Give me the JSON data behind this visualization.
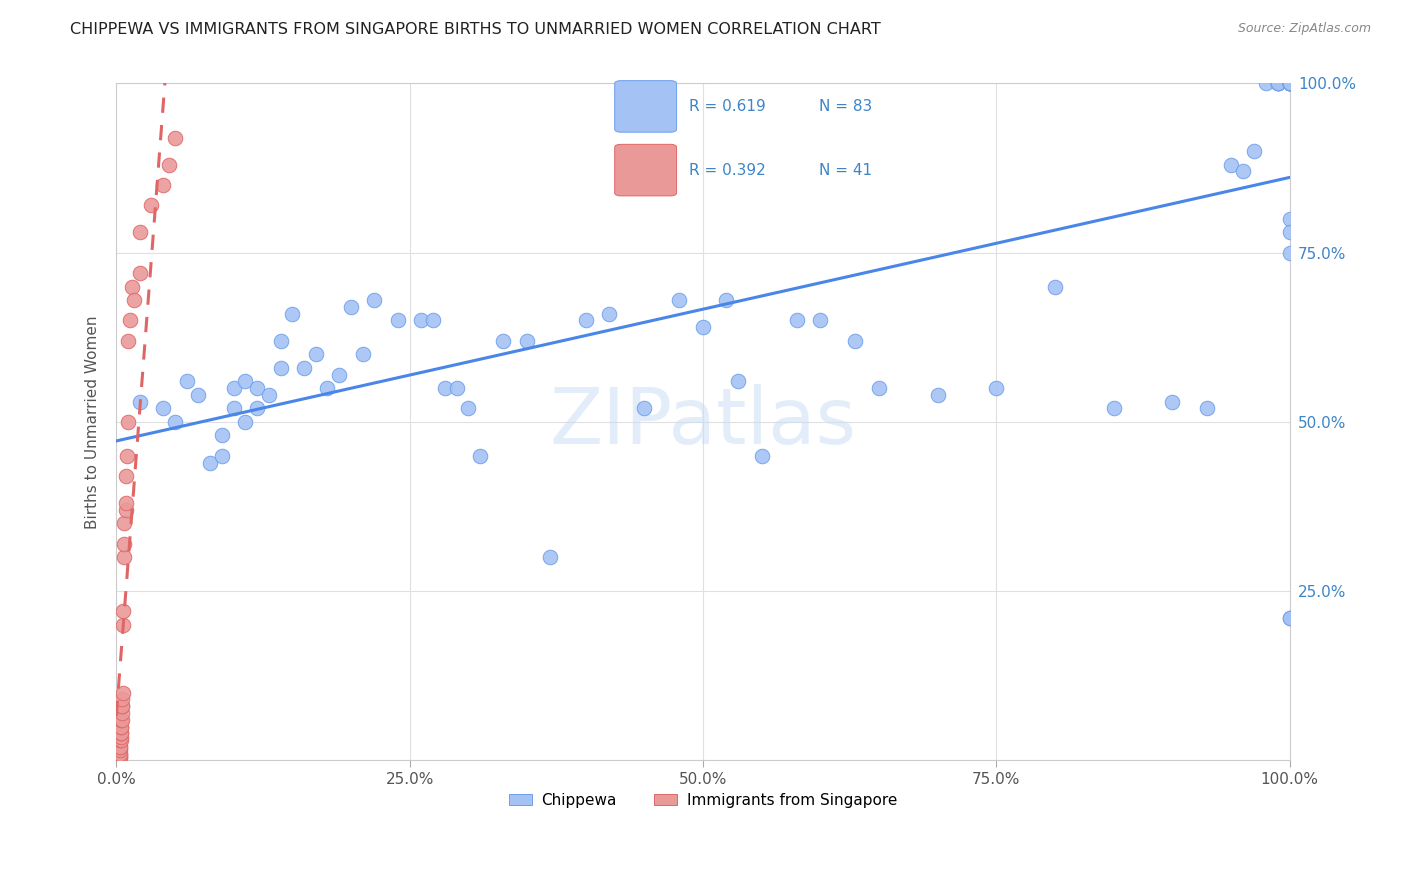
{
  "title": "CHIPPEWA VS IMMIGRANTS FROM SINGAPORE BIRTHS TO UNMARRIED WOMEN CORRELATION CHART",
  "source": "Source: ZipAtlas.com",
  "ylabel": "Births to Unmarried Women",
  "xlim": [
    0.0,
    1.0
  ],
  "ylim": [
    0.0,
    1.0
  ],
  "xtick_vals": [
    0.0,
    0.25,
    0.5,
    0.75,
    1.0
  ],
  "xtick_labels": [
    "0.0%",
    "25.0%",
    "50.0%",
    "75.0%",
    "100.0%"
  ],
  "right_ytick_vals": [
    0.25,
    0.5,
    0.75,
    1.0
  ],
  "right_ytick_labels": [
    "25.0%",
    "50.0%",
    "75.0%",
    "100.0%"
  ],
  "legend_r1": "0.619",
  "legend_n1": "83",
  "legend_r2": "0.392",
  "legend_n2": "41",
  "color_blue": "#a4c2f4",
  "color_blue_edge": "#6d9eeb",
  "color_pink": "#ea9999",
  "color_pink_edge": "#e06666",
  "color_blue_text": "#3d85c8",
  "line_blue_color": "#4a86e8",
  "line_pink_color": "#e06666",
  "background_color": "#ffffff",
  "watermark": "ZIPatlas",
  "chippewa_x": [
    0.02,
    0.04,
    0.05,
    0.06,
    0.07,
    0.08,
    0.09,
    0.09,
    0.1,
    0.1,
    0.11,
    0.11,
    0.12,
    0.12,
    0.13,
    0.14,
    0.14,
    0.15,
    0.16,
    0.17,
    0.18,
    0.19,
    0.2,
    0.21,
    0.22,
    0.24,
    0.26,
    0.27,
    0.28,
    0.29,
    0.3,
    0.31,
    0.33,
    0.35,
    0.37,
    0.4,
    0.42,
    0.45,
    0.48,
    0.5,
    0.52,
    0.53,
    0.55,
    0.58,
    0.6,
    0.63,
    0.65,
    0.7,
    0.75,
    0.8,
    0.85,
    0.9,
    0.93,
    0.95,
    0.96,
    0.97,
    0.98,
    0.99,
    0.99,
    0.99,
    0.99,
    0.99,
    1.0,
    1.0,
    1.0,
    1.0,
    1.0,
    1.0,
    1.0,
    1.0,
    1.0,
    1.0,
    1.0,
    1.0,
    1.0,
    1.0,
    1.0,
    1.0,
    1.0,
    1.0,
    1.0,
    1.0,
    1.0
  ],
  "chippewa_y": [
    0.53,
    0.52,
    0.5,
    0.56,
    0.54,
    0.44,
    0.45,
    0.48,
    0.55,
    0.52,
    0.56,
    0.5,
    0.55,
    0.52,
    0.54,
    0.62,
    0.58,
    0.66,
    0.58,
    0.6,
    0.55,
    0.57,
    0.67,
    0.6,
    0.68,
    0.65,
    0.65,
    0.65,
    0.55,
    0.55,
    0.52,
    0.45,
    0.62,
    0.62,
    0.3,
    0.65,
    0.66,
    0.52,
    0.68,
    0.64,
    0.68,
    0.56,
    0.45,
    0.65,
    0.65,
    0.62,
    0.55,
    0.54,
    0.55,
    0.7,
    0.52,
    0.53,
    0.52,
    0.88,
    0.87,
    0.9,
    1.0,
    1.0,
    1.0,
    1.0,
    1.0,
    1.0,
    1.0,
    1.0,
    1.0,
    1.0,
    1.0,
    1.0,
    1.0,
    1.0,
    1.0,
    1.0,
    1.0,
    1.0,
    1.0,
    1.0,
    1.0,
    1.0,
    0.21,
    0.21,
    0.75,
    0.8,
    0.78
  ],
  "singapore_x": [
    0.003,
    0.003,
    0.003,
    0.003,
    0.003,
    0.003,
    0.003,
    0.003,
    0.004,
    0.004,
    0.004,
    0.004,
    0.004,
    0.004,
    0.004,
    0.005,
    0.005,
    0.005,
    0.005,
    0.005,
    0.006,
    0.006,
    0.006,
    0.007,
    0.007,
    0.007,
    0.008,
    0.008,
    0.008,
    0.009,
    0.01,
    0.01,
    0.012,
    0.013,
    0.015,
    0.02,
    0.02,
    0.03,
    0.04,
    0.045,
    0.05
  ],
  "singapore_y": [
    0.005,
    0.005,
    0.01,
    0.01,
    0.015,
    0.02,
    0.02,
    0.03,
    0.03,
    0.035,
    0.04,
    0.04,
    0.05,
    0.05,
    0.06,
    0.06,
    0.07,
    0.08,
    0.08,
    0.09,
    0.1,
    0.2,
    0.22,
    0.3,
    0.32,
    0.35,
    0.37,
    0.38,
    0.42,
    0.45,
    0.5,
    0.62,
    0.65,
    0.7,
    0.68,
    0.72,
    0.78,
    0.82,
    0.85,
    0.88,
    0.92
  ]
}
